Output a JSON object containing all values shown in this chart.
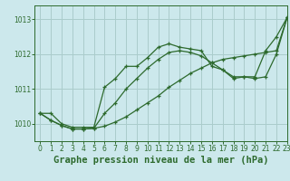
{
  "background_color": "#cce8ec",
  "grid_color": "#aacccc",
  "line_color": "#2d6a2d",
  "title": "Graphe pression niveau de la mer (hPa)",
  "xlim": [
    -0.5,
    23
  ],
  "ylim": [
    1009.5,
    1013.4
  ],
  "yticks": [
    1010,
    1011,
    1012,
    1013
  ],
  "xticks": [
    0,
    1,
    2,
    3,
    4,
    5,
    6,
    7,
    8,
    9,
    10,
    11,
    12,
    13,
    14,
    15,
    16,
    17,
    18,
    19,
    20,
    21,
    22,
    23
  ],
  "line1_x": [
    0,
    1,
    2,
    3,
    4,
    5,
    6,
    7,
    8,
    9,
    10,
    11,
    12,
    13,
    14,
    15,
    16,
    17,
    18,
    19,
    20,
    21,
    22,
    23
  ],
  "line1_y": [
    1010.3,
    1010.3,
    1010.0,
    1009.9,
    1009.9,
    1009.9,
    1011.05,
    1011.3,
    1011.65,
    1011.65,
    1011.9,
    1012.2,
    1012.3,
    1012.2,
    1012.15,
    1012.1,
    1011.65,
    1011.55,
    1011.3,
    1011.35,
    1011.35,
    1012.1,
    1012.5,
    1013.05
  ],
  "line2_x": [
    0,
    1,
    2,
    3,
    4,
    5,
    6,
    7,
    8,
    9,
    10,
    11,
    12,
    13,
    14,
    15,
    16,
    17,
    18,
    19,
    20,
    21,
    22,
    23
  ],
  "line2_y": [
    1010.3,
    1010.1,
    1009.95,
    1009.85,
    1009.85,
    1009.87,
    1009.93,
    1010.05,
    1010.2,
    1010.4,
    1010.6,
    1010.8,
    1011.05,
    1011.25,
    1011.45,
    1011.6,
    1011.75,
    1011.85,
    1011.9,
    1011.95,
    1012.0,
    1012.05,
    1012.1,
    1013.05
  ],
  "line3_x": [
    0,
    1,
    2,
    3,
    4,
    5,
    6,
    7,
    8,
    9,
    10,
    11,
    12,
    13,
    14,
    15,
    16,
    17,
    18,
    19,
    20,
    21,
    22,
    23
  ],
  "line3_y": [
    1010.3,
    1010.1,
    1009.95,
    1009.85,
    1009.85,
    1009.87,
    1010.3,
    1010.6,
    1011.0,
    1011.3,
    1011.6,
    1011.85,
    1012.05,
    1012.1,
    1012.05,
    1011.95,
    1011.75,
    1011.55,
    1011.35,
    1011.35,
    1011.3,
    1011.35,
    1012.0,
    1013.05
  ],
  "title_fontsize": 7.5,
  "tick_fontsize": 5.5
}
